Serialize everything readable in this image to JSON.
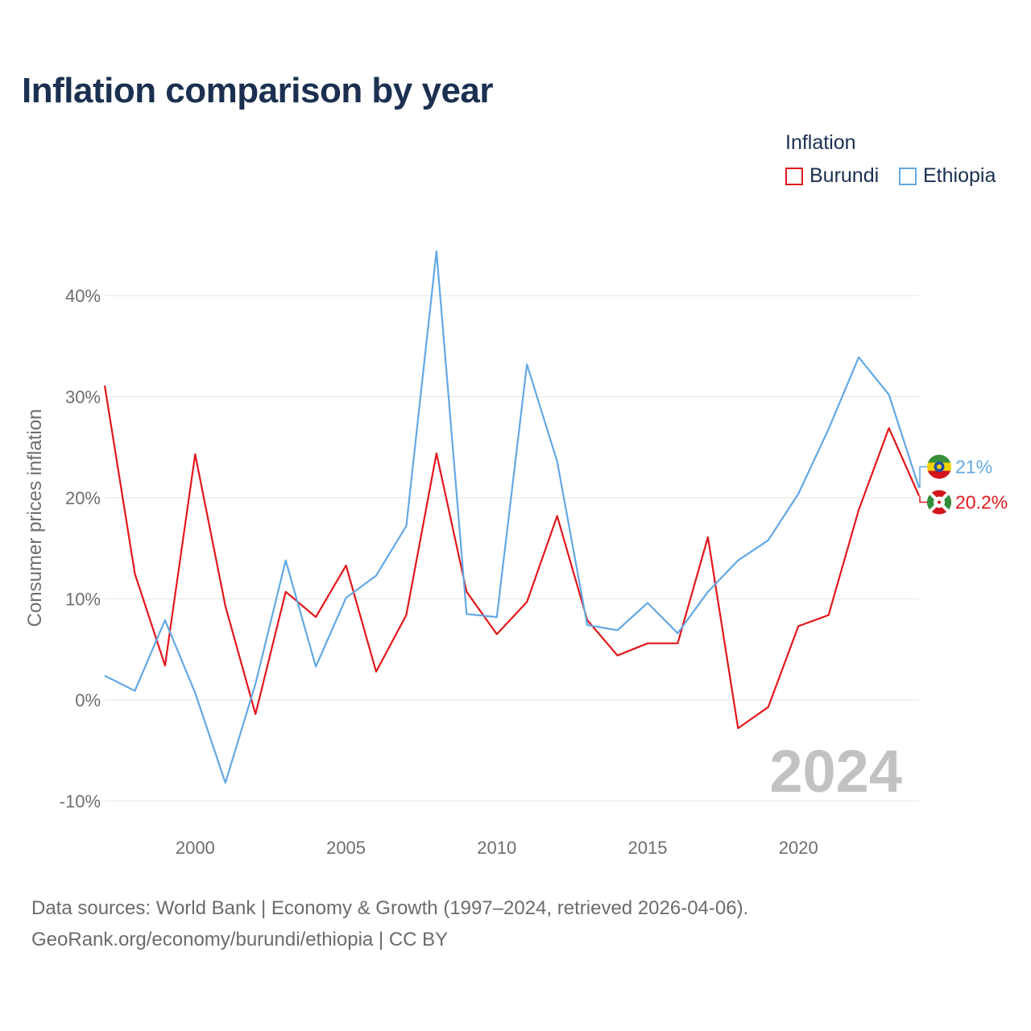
{
  "title": "Inflation comparison by year",
  "legend": {
    "title": "Inflation",
    "items": [
      {
        "label": "Burundi",
        "color": "#e3171b"
      },
      {
        "label": "Ethiopia",
        "color": "#62a8e5"
      }
    ]
  },
  "footer": {
    "line1": "Data sources: World Bank | Economy & Growth (1997–2024, retrieved 2026-04-06).",
    "line2": "GeoRank.org/economy/burundi/ethiopia | CC BY"
  },
  "chart_data": {
    "type": "line",
    "title": "Inflation comparison by year",
    "xlabel": "",
    "ylabel": "Consumer prices inflation",
    "x": [
      1997,
      1998,
      1999,
      2000,
      2001,
      2002,
      2003,
      2004,
      2005,
      2006,
      2007,
      2008,
      2009,
      2010,
      2011,
      2012,
      2013,
      2014,
      2015,
      2016,
      2017,
      2018,
      2019,
      2020,
      2021,
      2022,
      2023,
      2024
    ],
    "xlim": [
      1997,
      2024
    ],
    "ylim": [
      -10,
      48
    ],
    "xticks": [
      2000,
      2005,
      2010,
      2015,
      2020
    ],
    "xtick_labels": [
      "2000",
      "2005",
      "2010",
      "2015",
      "2020"
    ],
    "yticks": [
      -10,
      0,
      10,
      20,
      30,
      40
    ],
    "ytick_labels": [
      "-10%",
      "0%",
      "10%",
      "20%",
      "30%",
      "40%"
    ],
    "grid": true,
    "series": [
      {
        "name": "Burundi",
        "color": "#e3171b",
        "values": [
          31.1,
          12.5,
          3.4,
          24.3,
          9.3,
          -1.4,
          10.7,
          8.2,
          13.3,
          2.8,
          8.4,
          24.4,
          10.7,
          6.5,
          9.7,
          18.2,
          7.9,
          4.4,
          5.6,
          5.6,
          16.1,
          -2.8,
          -0.7,
          7.3,
          8.4,
          18.8,
          26.9,
          20.2
        ],
        "end_label": "20.2%"
      },
      {
        "name": "Ethiopia",
        "color": "#62a8e5",
        "values": [
          2.4,
          0.9,
          7.9,
          0.7,
          -8.2,
          1.6,
          13.8,
          3.3,
          10.1,
          12.3,
          17.2,
          44.4,
          8.5,
          8.2,
          33.2,
          23.6,
          7.4,
          6.9,
          9.6,
          6.6,
          10.7,
          13.8,
          15.8,
          20.4,
          26.8,
          33.9,
          30.2,
          21.0
        ],
        "end_label": "21%"
      }
    ],
    "annotation_year": "2024"
  }
}
